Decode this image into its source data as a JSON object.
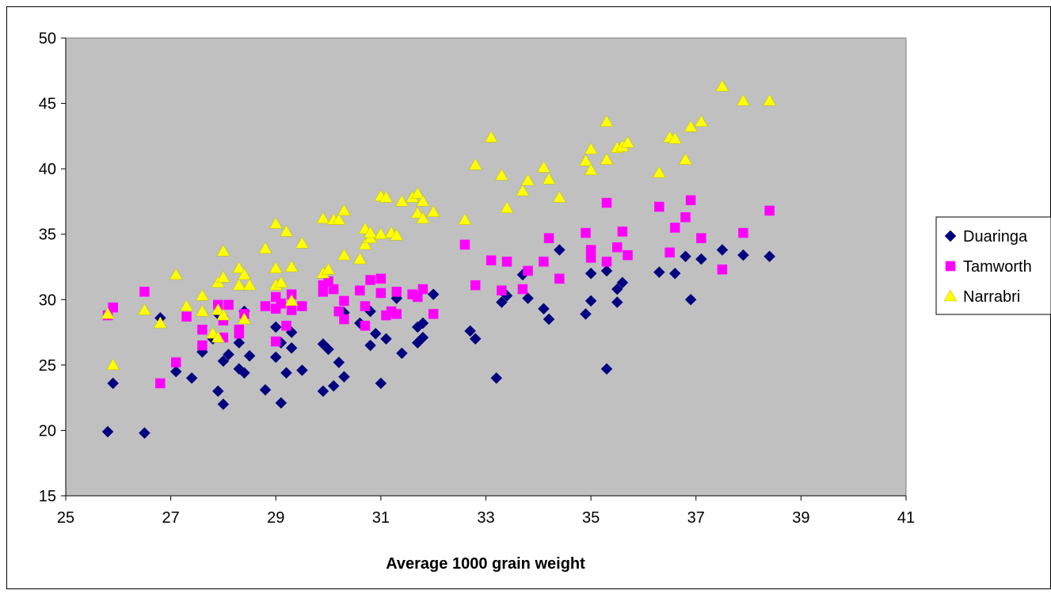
{
  "chart_data": {
    "type": "scatter",
    "title": "",
    "xlabel": "Average 1000 grain weight",
    "ylabel": "",
    "xlim": [
      25,
      41
    ],
    "ylim": [
      15,
      50
    ],
    "x_ticks": [
      "25",
      "27",
      "29",
      "31",
      "33",
      "35",
      "37",
      "39",
      "41"
    ],
    "y_ticks": [
      "15",
      "20",
      "25",
      "30",
      "35",
      "40",
      "45",
      "50"
    ],
    "grid": false,
    "plot_background": "#c0c0c0",
    "legend_position": "right",
    "series": [
      {
        "name": "Duaringa",
        "color": "#000080",
        "marker": "diamond",
        "points": [
          [
            25.8,
            19.9
          ],
          [
            25.9,
            23.6
          ],
          [
            26.5,
            19.8
          ],
          [
            26.8,
            28.6
          ],
          [
            27.1,
            24.5
          ],
          [
            27.4,
            24.0
          ],
          [
            27.6,
            26.0
          ],
          [
            27.8,
            27.0
          ],
          [
            27.9,
            28.9
          ],
          [
            27.9,
            23.0
          ],
          [
            28.0,
            22.0
          ],
          [
            28.0,
            25.3
          ],
          [
            28.1,
            25.8
          ],
          [
            28.3,
            24.7
          ],
          [
            28.3,
            26.7
          ],
          [
            28.4,
            24.4
          ],
          [
            28.4,
            29.1
          ],
          [
            28.5,
            25.7
          ],
          [
            28.8,
            23.1
          ],
          [
            29.0,
            27.9
          ],
          [
            29.0,
            25.6
          ],
          [
            29.1,
            22.1
          ],
          [
            29.1,
            26.7
          ],
          [
            29.2,
            24.4
          ],
          [
            29.3,
            26.3
          ],
          [
            29.3,
            27.5
          ],
          [
            29.5,
            24.6
          ],
          [
            29.9,
            26.6
          ],
          [
            29.9,
            23.0
          ],
          [
            30.0,
            26.2
          ],
          [
            30.1,
            23.4
          ],
          [
            30.2,
            25.2
          ],
          [
            30.3,
            24.1
          ],
          [
            30.3,
            29.0
          ],
          [
            30.6,
            28.2
          ],
          [
            30.8,
            29.1
          ],
          [
            30.8,
            26.5
          ],
          [
            30.9,
            27.4
          ],
          [
            31.0,
            23.6
          ],
          [
            31.1,
            27.0
          ],
          [
            31.3,
            30.1
          ],
          [
            31.4,
            25.9
          ],
          [
            31.7,
            26.7
          ],
          [
            31.7,
            27.9
          ],
          [
            31.8,
            27.1
          ],
          [
            31.8,
            28.2
          ],
          [
            32.0,
            30.4
          ],
          [
            32.7,
            27.6
          ],
          [
            32.8,
            27.0
          ],
          [
            33.2,
            24.0
          ],
          [
            33.3,
            29.8
          ],
          [
            33.4,
            30.3
          ],
          [
            33.7,
            31.9
          ],
          [
            33.8,
            30.1
          ],
          [
            34.1,
            29.3
          ],
          [
            34.2,
            28.5
          ],
          [
            34.4,
            33.8
          ],
          [
            34.9,
            28.9
          ],
          [
            35.0,
            29.9
          ],
          [
            35.0,
            32.0
          ],
          [
            35.3,
            24.7
          ],
          [
            35.3,
            32.2
          ],
          [
            35.5,
            30.8
          ],
          [
            35.5,
            29.8
          ],
          [
            35.6,
            31.3
          ],
          [
            36.3,
            32.1
          ],
          [
            36.6,
            32.0
          ],
          [
            36.8,
            33.3
          ],
          [
            36.9,
            30.0
          ],
          [
            37.1,
            33.1
          ],
          [
            37.5,
            33.8
          ],
          [
            37.9,
            33.4
          ],
          [
            38.4,
            33.3
          ]
        ]
      },
      {
        "name": "Tamworth",
        "color": "#ff00ff",
        "marker": "square",
        "points": [
          [
            25.8,
            28.8
          ],
          [
            25.9,
            29.4
          ],
          [
            26.5,
            30.6
          ],
          [
            26.8,
            23.6
          ],
          [
            27.1,
            25.2
          ],
          [
            27.3,
            28.7
          ],
          [
            27.6,
            26.5
          ],
          [
            27.6,
            27.7
          ],
          [
            27.9,
            29.6
          ],
          [
            28.0,
            27.1
          ],
          [
            28.0,
            28.4
          ],
          [
            28.1,
            29.6
          ],
          [
            28.3,
            27.7
          ],
          [
            28.3,
            27.4
          ],
          [
            28.4,
            28.9
          ],
          [
            28.8,
            29.5
          ],
          [
            29.0,
            30.2
          ],
          [
            29.0,
            26.8
          ],
          [
            29.0,
            29.3
          ],
          [
            29.1,
            29.7
          ],
          [
            29.2,
            28.0
          ],
          [
            29.3,
            30.4
          ],
          [
            29.3,
            29.2
          ],
          [
            29.5,
            29.5
          ],
          [
            29.9,
            31.1
          ],
          [
            29.9,
            30.6
          ],
          [
            30.0,
            31.4
          ],
          [
            30.1,
            30.8
          ],
          [
            30.2,
            29.1
          ],
          [
            30.3,
            28.5
          ],
          [
            30.3,
            29.9
          ],
          [
            30.6,
            30.7
          ],
          [
            30.7,
            29.5
          ],
          [
            30.7,
            28.0
          ],
          [
            30.8,
            31.5
          ],
          [
            31.0,
            30.5
          ],
          [
            31.0,
            31.6
          ],
          [
            31.1,
            28.8
          ],
          [
            31.2,
            29.1
          ],
          [
            31.3,
            28.9
          ],
          [
            31.3,
            30.6
          ],
          [
            31.6,
            30.4
          ],
          [
            31.7,
            30.2
          ],
          [
            31.8,
            30.8
          ],
          [
            32.0,
            28.9
          ],
          [
            32.6,
            34.2
          ],
          [
            32.8,
            31.1
          ],
          [
            33.1,
            33.0
          ],
          [
            33.3,
            30.7
          ],
          [
            33.4,
            32.9
          ],
          [
            33.7,
            30.8
          ],
          [
            33.8,
            32.2
          ],
          [
            34.1,
            32.9
          ],
          [
            34.2,
            34.7
          ],
          [
            34.4,
            31.6
          ],
          [
            34.9,
            35.1
          ],
          [
            35.0,
            33.8
          ],
          [
            35.0,
            33.2
          ],
          [
            35.3,
            37.4
          ],
          [
            35.3,
            32.9
          ],
          [
            35.5,
            34.0
          ],
          [
            35.6,
            35.2
          ],
          [
            35.7,
            33.4
          ],
          [
            36.3,
            37.1
          ],
          [
            36.5,
            33.6
          ],
          [
            36.6,
            35.5
          ],
          [
            36.8,
            36.3
          ],
          [
            36.9,
            37.6
          ],
          [
            37.1,
            34.7
          ],
          [
            37.5,
            32.3
          ],
          [
            37.9,
            35.1
          ],
          [
            38.4,
            36.8
          ]
        ]
      },
      {
        "name": "Narrabri",
        "color": "#ffff00",
        "marker": "triangle",
        "points": [
          [
            25.8,
            28.9
          ],
          [
            25.9,
            25.0
          ],
          [
            26.5,
            29.2
          ],
          [
            26.8,
            28.2
          ],
          [
            27.1,
            31.9
          ],
          [
            27.3,
            29.5
          ],
          [
            27.6,
            29.1
          ],
          [
            27.6,
            30.3
          ],
          [
            27.8,
            27.4
          ],
          [
            27.9,
            29.2
          ],
          [
            27.9,
            27.1
          ],
          [
            27.9,
            31.3
          ],
          [
            28.0,
            28.8
          ],
          [
            28.0,
            31.7
          ],
          [
            28.0,
            33.7
          ],
          [
            28.3,
            32.4
          ],
          [
            28.3,
            31.1
          ],
          [
            28.4,
            28.5
          ],
          [
            28.4,
            31.9
          ],
          [
            28.5,
            31.1
          ],
          [
            28.8,
            33.9
          ],
          [
            29.0,
            31.1
          ],
          [
            29.0,
            32.4
          ],
          [
            29.0,
            35.8
          ],
          [
            29.1,
            31.3
          ],
          [
            29.2,
            35.2
          ],
          [
            29.3,
            32.5
          ],
          [
            29.3,
            29.9
          ],
          [
            29.5,
            34.3
          ],
          [
            29.9,
            36.2
          ],
          [
            29.9,
            32.0
          ],
          [
            30.0,
            32.3
          ],
          [
            30.1,
            36.1
          ],
          [
            30.2,
            36.1
          ],
          [
            30.3,
            36.8
          ],
          [
            30.3,
            33.4
          ],
          [
            30.6,
            33.1
          ],
          [
            30.7,
            34.2
          ],
          [
            30.7,
            35.4
          ],
          [
            30.8,
            34.7
          ],
          [
            30.8,
            35.1
          ],
          [
            31.0,
            35.0
          ],
          [
            31.0,
            37.9
          ],
          [
            31.1,
            37.8
          ],
          [
            31.2,
            35.1
          ],
          [
            31.3,
            34.9
          ],
          [
            31.4,
            37.5
          ],
          [
            31.6,
            37.8
          ],
          [
            31.7,
            36.6
          ],
          [
            31.7,
            38.1
          ],
          [
            31.8,
            36.2
          ],
          [
            31.8,
            37.5
          ],
          [
            32.0,
            36.7
          ],
          [
            32.6,
            36.1
          ],
          [
            32.8,
            40.3
          ],
          [
            33.1,
            42.4
          ],
          [
            33.3,
            39.5
          ],
          [
            33.4,
            37.0
          ],
          [
            33.7,
            38.3
          ],
          [
            33.8,
            39.1
          ],
          [
            34.1,
            40.1
          ],
          [
            34.2,
            39.2
          ],
          [
            34.4,
            37.8
          ],
          [
            34.9,
            40.6
          ],
          [
            35.0,
            41.5
          ],
          [
            35.0,
            39.9
          ],
          [
            35.3,
            43.6
          ],
          [
            35.3,
            40.7
          ],
          [
            35.5,
            41.6
          ],
          [
            35.6,
            41.7
          ],
          [
            35.7,
            42.0
          ],
          [
            36.3,
            39.7
          ],
          [
            36.5,
            42.4
          ],
          [
            36.6,
            42.3
          ],
          [
            36.8,
            40.7
          ],
          [
            36.9,
            43.2
          ],
          [
            37.1,
            43.6
          ],
          [
            37.5,
            46.3
          ],
          [
            37.9,
            45.2
          ],
          [
            38.4,
            45.2
          ]
        ]
      }
    ]
  }
}
